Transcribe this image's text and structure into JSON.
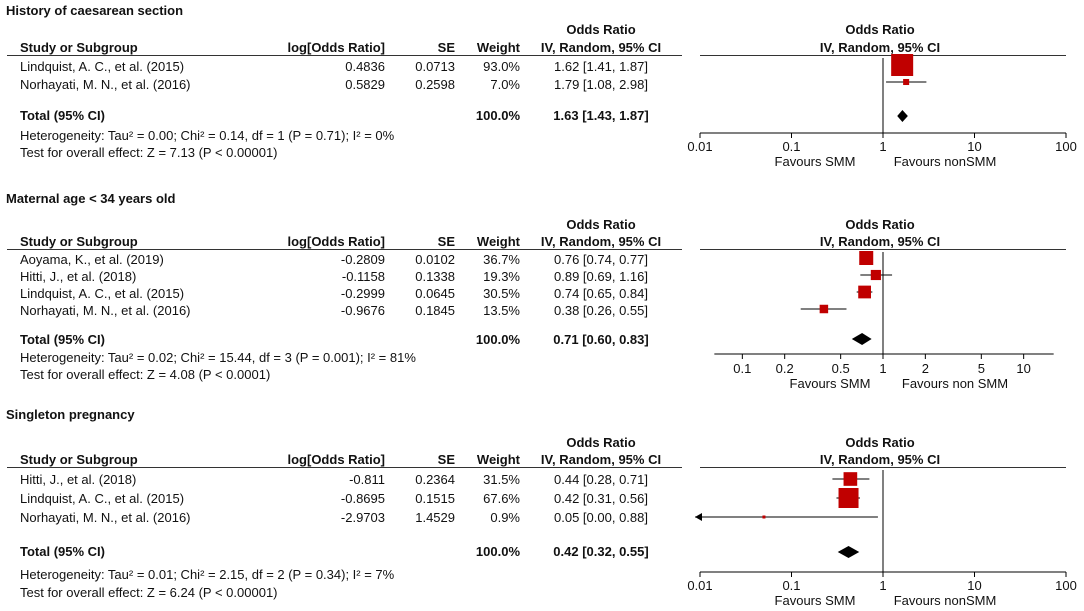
{
  "headers": {
    "study": "Study or Subgroup",
    "log_or": "log[Odds Ratio]",
    "se": "SE",
    "weight": "Weight",
    "or_top": "Odds Ratio",
    "or_bottom": "IV, Random, 95% CI"
  },
  "colors": {
    "square": "#c00000",
    "diamond": "#000000",
    "line": "#000000"
  },
  "chart_data": [
    {
      "type": "forest",
      "title": "History of caesarean section",
      "scale": "log",
      "xlim": [
        0.01,
        100
      ],
      "ticks": [
        "0.01",
        "0.1",
        "1",
        "10",
        "100"
      ],
      "tick_values": [
        0.01,
        0.1,
        1,
        10,
        100
      ],
      "favours_left": "Favours SMM",
      "favours_right": "Favours nonSMM",
      "studies": [
        {
          "name": "Lindquist, A. C., et al. (2015)",
          "log_or": "0.4836",
          "se": "0.0713",
          "weight": "93.0%",
          "ci_text": "1.62 [1.41, 1.87]",
          "or": 1.62,
          "lo": 1.41,
          "hi": 1.87,
          "w": 93.0
        },
        {
          "name": "Norhayati, M. N., et al. (2016)",
          "log_or": "0.5829",
          "se": "0.2598",
          "weight": "7.0%",
          "ci_text": "1.79 [1.08, 2.98]",
          "or": 1.79,
          "lo": 1.08,
          "hi": 2.98,
          "w": 7.0
        }
      ],
      "total": {
        "label": "Total (95% CI)",
        "weight": "100.0%",
        "ci_text": "1.63 [1.43, 1.87]",
        "or": 1.63,
        "lo": 1.43,
        "hi": 1.87
      },
      "heterogeneity": "Heterogeneity: Tau² = 0.00; Chi² = 0.14, df = 1 (P = 0.71); I² = 0%",
      "overall": "Test for overall effect: Z = 7.13 (P < 0.00001)"
    },
    {
      "type": "forest",
      "title": "Maternal age < 34 years old",
      "scale": "log",
      "xlim": [
        0.05,
        20
      ],
      "ticks": [
        "0.1",
        "0.2",
        "0.5",
        "1",
        "2",
        "5",
        "10"
      ],
      "tick_values": [
        0.1,
        0.2,
        0.5,
        1,
        2,
        5,
        10
      ],
      "favours_left": "Favours SMM",
      "favours_right": "Favours non SMM",
      "studies": [
        {
          "name": "Aoyama, K., et al. (2019)",
          "log_or": "-0.2809",
          "se": "0.0102",
          "weight": "36.7%",
          "ci_text": "0.76 [0.74, 0.77]",
          "or": 0.76,
          "lo": 0.74,
          "hi": 0.77,
          "w": 36.7
        },
        {
          "name": "Hitti, J., et al. (2018)",
          "log_or": "-0.1158",
          "se": "0.1338",
          "weight": "19.3%",
          "ci_text": "0.89 [0.69, 1.16]",
          "or": 0.89,
          "lo": 0.69,
          "hi": 1.16,
          "w": 19.3
        },
        {
          "name": "Lindquist, A. C., et al. (2015)",
          "log_or": "-0.2999",
          "se": "0.0645",
          "weight": "30.5%",
          "ci_text": "0.74 [0.65, 0.84]",
          "or": 0.74,
          "lo": 0.65,
          "hi": 0.84,
          "w": 30.5
        },
        {
          "name": "Norhayati, M. N., et al. (2016)",
          "log_or": "-0.9676",
          "se": "0.1845",
          "weight": "13.5%",
          "ci_text": "0.38 [0.26, 0.55]",
          "or": 0.38,
          "lo": 0.26,
          "hi": 0.55,
          "w": 13.5
        }
      ],
      "total": {
        "label": "Total (95% CI)",
        "weight": "100.0%",
        "ci_text": "0.71 [0.60, 0.83]",
        "or": 0.71,
        "lo": 0.6,
        "hi": 0.83
      },
      "heterogeneity": "Heterogeneity: Tau² = 0.02; Chi² = 15.44, df = 3 (P = 0.001); I² = 81%",
      "overall": "Test for overall effect: Z = 4.08 (P < 0.0001)"
    },
    {
      "type": "forest",
      "title": "Singleton pregnancy",
      "scale": "log",
      "xlim": [
        0.01,
        100
      ],
      "ticks": [
        "0.01",
        "0.1",
        "1",
        "10",
        "100"
      ],
      "tick_values": [
        0.01,
        0.1,
        1,
        10,
        100
      ],
      "favours_left": "Favours SMM",
      "favours_right": "Favours nonSMM",
      "studies": [
        {
          "name": "Hitti, J., et al. (2018)",
          "log_or": "-0.811",
          "se": "0.2364",
          "weight": "31.5%",
          "ci_text": "0.44 [0.28, 0.71]",
          "or": 0.44,
          "lo": 0.28,
          "hi": 0.71,
          "w": 31.5
        },
        {
          "name": "Lindquist, A. C., et al. (2015)",
          "log_or": "-0.8695",
          "se": "0.1515",
          "weight": "67.6%",
          "ci_text": "0.42 [0.31, 0.56]",
          "or": 0.42,
          "lo": 0.31,
          "hi": 0.56,
          "w": 67.6
        },
        {
          "name": "Norhayati, M. N., et al. (2016)",
          "log_or": "-2.9703",
          "se": "1.4529",
          "weight": "0.9%",
          "ci_text": "0.05 [0.00, 0.88]",
          "or": 0.05,
          "lo": 0.001,
          "hi": 0.88,
          "w": 0.9
        }
      ],
      "total": {
        "label": "Total (95% CI)",
        "weight": "100.0%",
        "ci_text": "0.42 [0.32, 0.55]",
        "or": 0.42,
        "lo": 0.32,
        "hi": 0.55
      },
      "heterogeneity": "Heterogeneity: Tau² = 0.01; Chi² = 2.15, df = 2 (P = 0.34); I² = 7%",
      "overall": "Test for overall effect: Z = 6.24 (P < 0.00001)"
    }
  ]
}
